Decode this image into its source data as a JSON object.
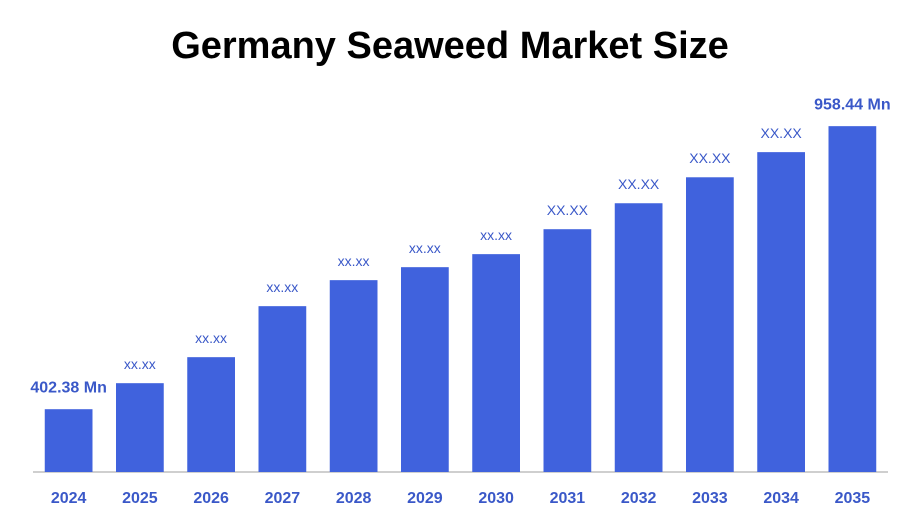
{
  "chart_data": {
    "type": "bar",
    "title": "Germany Seaweed Market Size",
    "categories": [
      "2024",
      "2025",
      "2026",
      "2027",
      "2028",
      "2029",
      "2030",
      "2031",
      "2032",
      "2033",
      "2034",
      "2035"
    ],
    "values": [
      402.38,
      453.5,
      504.6,
      604.8,
      655.9,
      681.4,
      707,
      756,
      807,
      858,
      907.4,
      958.44
    ],
    "value_labels": [
      "402.38 Mn",
      "xx.xx",
      "xx.xx",
      "xx.xx",
      "xx.xx",
      "xx.xx",
      "xx.xx",
      "XX.XX",
      "XX.XX",
      "XX.XX",
      "XX.XX",
      "958.44 Mn"
    ],
    "color": "#4062dd",
    "ylim": [
      279,
      1000
    ]
  }
}
